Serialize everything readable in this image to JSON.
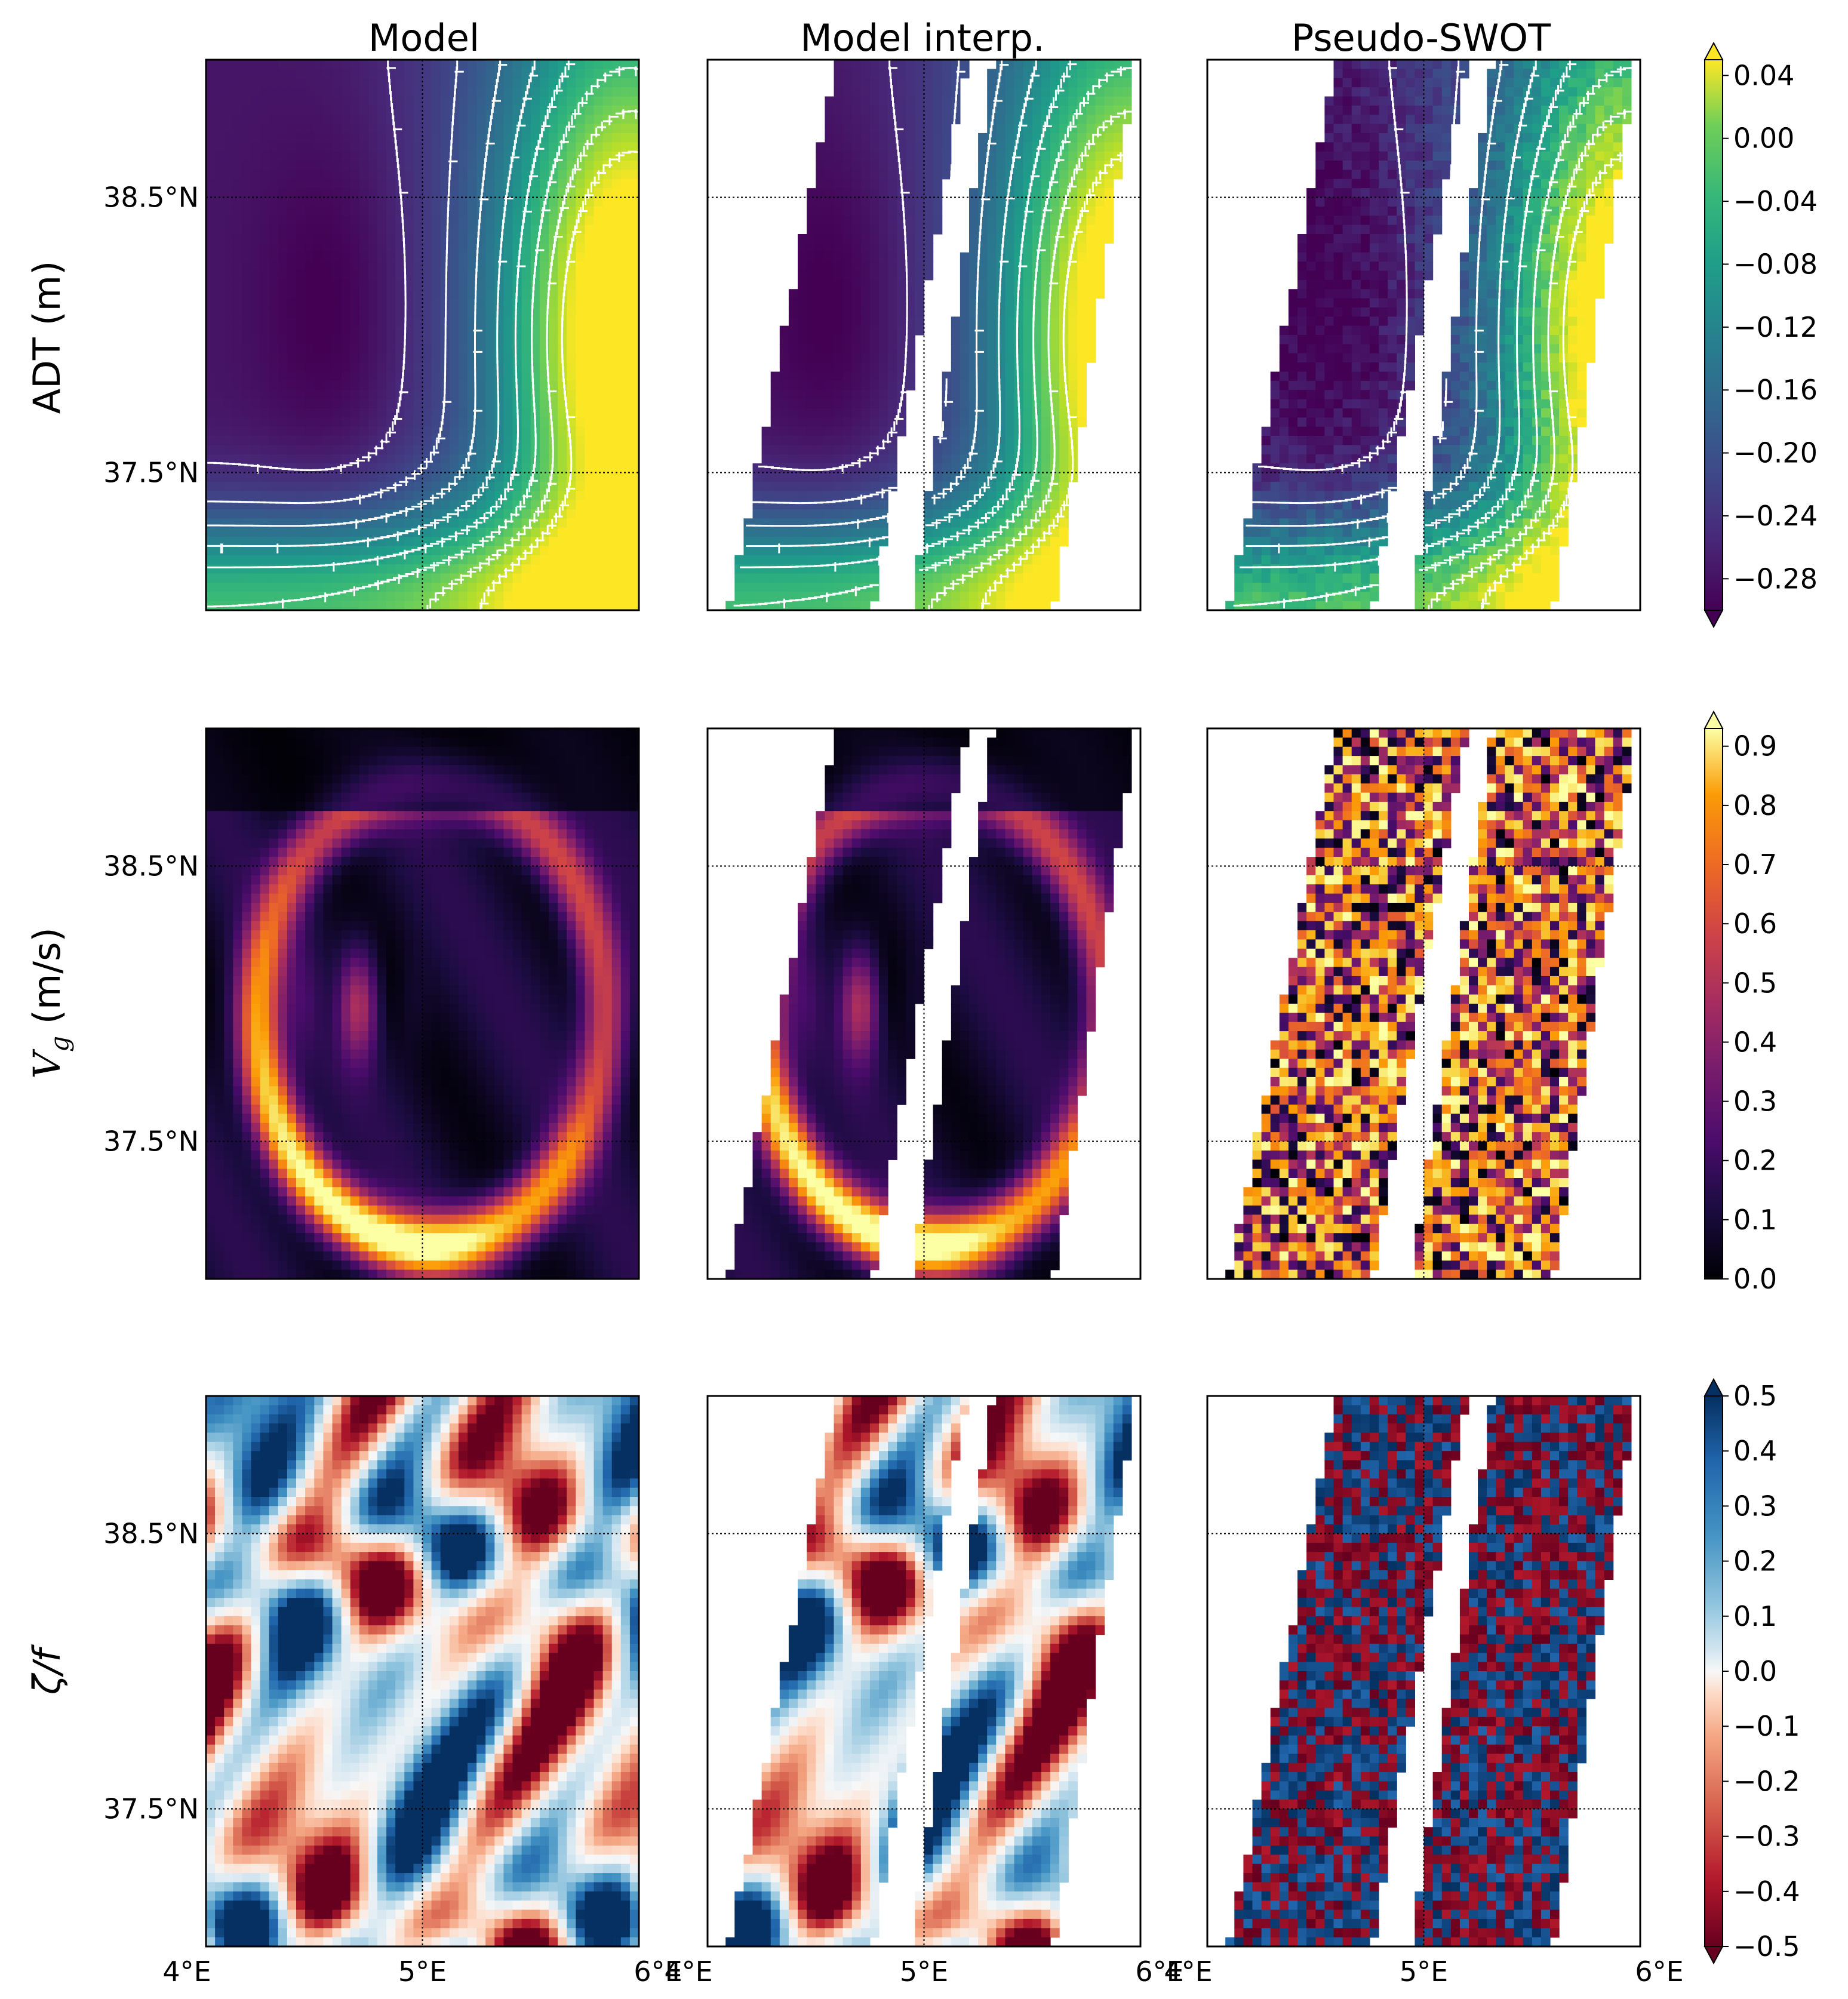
{
  "columns": [
    "Model",
    "Model interp.",
    "Pseudo-SWOT"
  ],
  "rows": [
    {
      "label": "ADT (m)",
      "label_style": "plain"
    },
    {
      "label": "V_g (m/s)",
      "label_style": "math_subscript",
      "label_main": "V",
      "label_sub": "g",
      "label_unit": " (m/s)"
    },
    {
      "label": "ζ/f",
      "label_style": "math"
    }
  ],
  "y_ticks": [
    "38.5°N",
    "37.5°N"
  ],
  "x_ticks": [
    "4°E",
    "5°E",
    "6°E"
  ],
  "colors": {
    "swath_background": "#ffffff",
    "grid": "#000000",
    "contour": "#ffffff"
  },
  "chart_data": [
    {
      "type": "heatmap",
      "quantity": "ADT (m)",
      "colormap": "viridis",
      "colorbar": {
        "ticks": [
          "0.04",
          "0.00",
          "−0.04",
          "−0.08",
          "−0.12",
          "−0.16",
          "−0.20",
          "−0.24",
          "−0.28"
        ],
        "range": [
          -0.3,
          0.05
        ],
        "extend": "both"
      },
      "x_range_deg_E": [
        4,
        6
      ],
      "y_range_deg_N": [
        37.0,
        39.0
      ],
      "panels": [
        "Model",
        "Model interp.",
        "Pseudo-SWOT"
      ],
      "contours": true
    },
    {
      "type": "heatmap",
      "quantity": "V_g (m/s)",
      "colormap": "inferno",
      "colorbar": {
        "ticks": [
          "0.9",
          "0.8",
          "0.7",
          "0.6",
          "0.5",
          "0.4",
          "0.3",
          "0.2",
          "0.1",
          "0.0"
        ],
        "range": [
          0.0,
          0.93
        ],
        "extend": "max"
      },
      "x_range_deg_E": [
        4,
        6
      ],
      "y_range_deg_N": [
        37.0,
        39.0
      ],
      "panels": [
        "Model",
        "Model interp.",
        "Pseudo-SWOT"
      ]
    },
    {
      "type": "heatmap",
      "quantity": "ζ/f",
      "colormap": "RdBu",
      "colorbar": {
        "ticks": [
          "0.5",
          "0.4",
          "0.3",
          "0.2",
          "0.1",
          "0.0",
          "−0.1",
          "−0.2",
          "−0.3",
          "−0.4",
          "−0.5"
        ],
        "range": [
          -0.5,
          0.5
        ],
        "extend": "both"
      },
      "x_range_deg_E": [
        4,
        6
      ],
      "y_range_deg_N": [
        37.0,
        39.0
      ],
      "panels": [
        "Model",
        "Model interp.",
        "Pseudo-SWOT"
      ]
    }
  ]
}
